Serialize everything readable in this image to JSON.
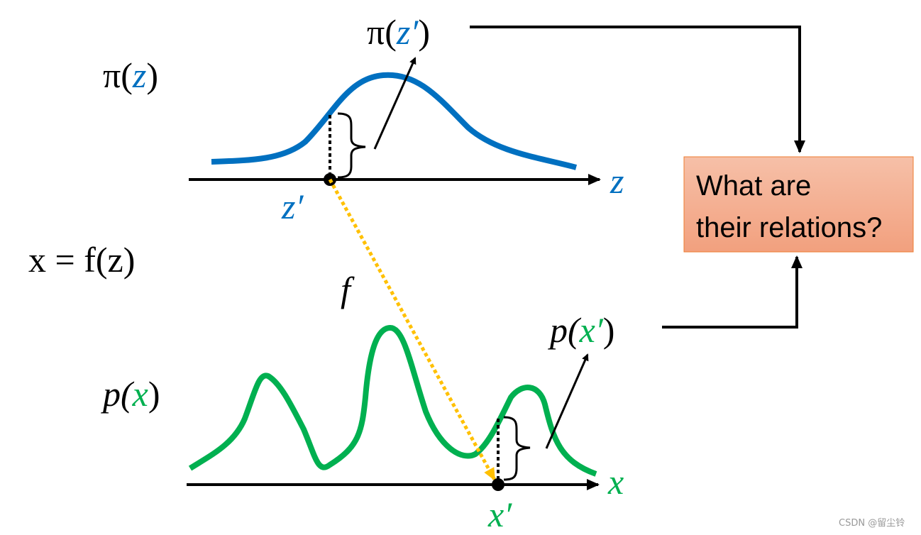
{
  "top_density_label": [
    "π(",
    "z",
    ")"
  ],
  "top_point_density_label": [
    "π(",
    "z′",
    ")"
  ],
  "top_axis_label": "z",
  "top_point_label": "z′",
  "mapping_equation": "x = f(z)",
  "mapping_label": "f",
  "bottom_density_label": [
    "p(",
    "x",
    ")"
  ],
  "bottom_point_density_label": [
    "p(",
    "x′",
    ")"
  ],
  "bottom_axis_label": "x",
  "bottom_point_label": "x′",
  "question_box": [
    "What are",
    "their relations?"
  ],
  "watermark": "CSDN @留尘铃"
}
